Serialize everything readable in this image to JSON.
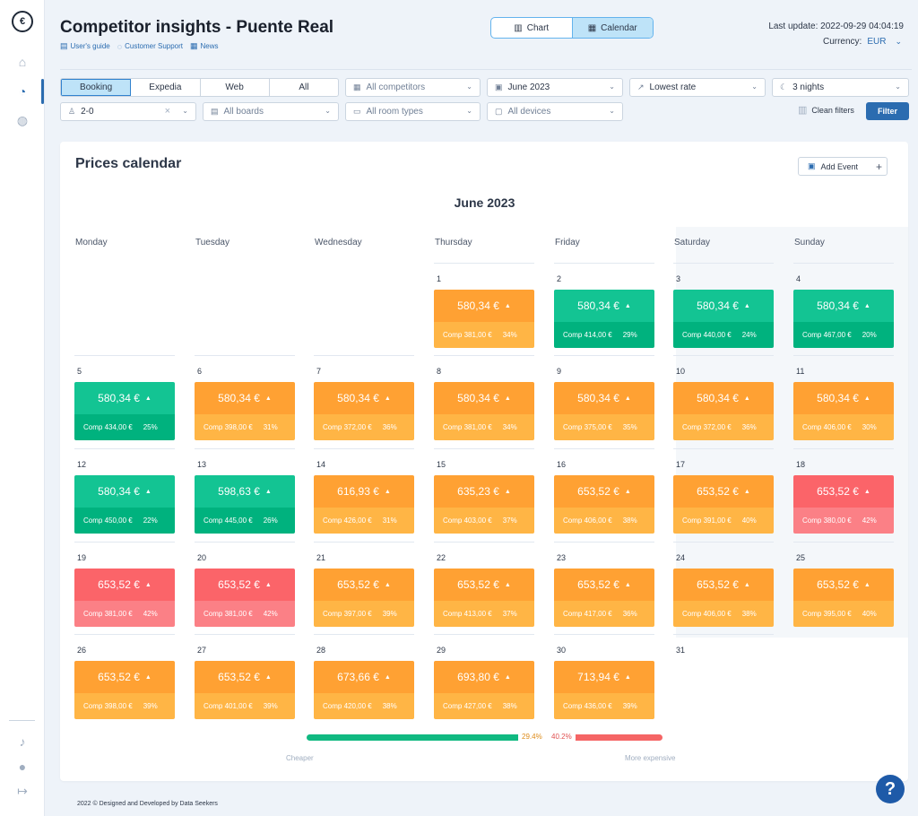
{
  "header": {
    "title": "Competitor insights - Puente Real",
    "links": [
      "User's guide",
      "Customer Support",
      "News"
    ],
    "view_toggle": [
      "Chart",
      "Calendar"
    ],
    "last_update": "Last update: 2022-09-29 04:04:19",
    "currency_label": "Currency:",
    "currency_value": "EUR"
  },
  "filters": {
    "sources": [
      "Booking",
      "Expedia",
      "Web",
      "All"
    ],
    "competitors": "All competitors",
    "month": "June 2023",
    "rate": "Lowest rate",
    "nights": "3 nights",
    "occupancy": "2-0",
    "boards": "All boards",
    "room_types": "All room types",
    "devices": "All devices",
    "clean_label": "Clean filters",
    "filter_label": "Filter"
  },
  "calendar": {
    "title": "Prices calendar",
    "add_event": "Add Event",
    "month_title": "June 2023",
    "weekdays": [
      "Monday",
      "Tuesday",
      "Wednesday",
      "Thursday",
      "Friday",
      "Saturday",
      "Sunday"
    ],
    "days": [
      {
        "d": "1",
        "price": "580,34 €",
        "comp": "Comp 381,00 €",
        "pct": "34%",
        "status": "o"
      },
      {
        "d": "2",
        "price": "580,34 €",
        "comp": "Comp 414,00 €",
        "pct": "29%",
        "status": "g"
      },
      {
        "d": "3",
        "price": "580,34 €",
        "comp": "Comp 440,00 €",
        "pct": "24%",
        "status": "g"
      },
      {
        "d": "4",
        "price": "580,34 €",
        "comp": "Comp 467,00 €",
        "pct": "20%",
        "status": "g"
      },
      {
        "d": "5",
        "price": "580,34 €",
        "comp": "Comp 434,00 €",
        "pct": "25%",
        "status": "g"
      },
      {
        "d": "6",
        "price": "580,34 €",
        "comp": "Comp 398,00 €",
        "pct": "31%",
        "status": "o"
      },
      {
        "d": "7",
        "price": "580,34 €",
        "comp": "Comp 372,00 €",
        "pct": "36%",
        "status": "o"
      },
      {
        "d": "8",
        "price": "580,34 €",
        "comp": "Comp 381,00 €",
        "pct": "34%",
        "status": "o"
      },
      {
        "d": "9",
        "price": "580,34 €",
        "comp": "Comp 375,00 €",
        "pct": "35%",
        "status": "o"
      },
      {
        "d": "10",
        "price": "580,34 €",
        "comp": "Comp 372,00 €",
        "pct": "36%",
        "status": "o"
      },
      {
        "d": "11",
        "price": "580,34 €",
        "comp": "Comp 406,00 €",
        "pct": "30%",
        "status": "o"
      },
      {
        "d": "12",
        "price": "580,34 €",
        "comp": "Comp 450,00 €",
        "pct": "22%",
        "status": "g"
      },
      {
        "d": "13",
        "price": "598,63 €",
        "comp": "Comp 445,00 €",
        "pct": "26%",
        "status": "g"
      },
      {
        "d": "14",
        "price": "616,93 €",
        "comp": "Comp 426,00 €",
        "pct": "31%",
        "status": "o"
      },
      {
        "d": "15",
        "price": "635,23 €",
        "comp": "Comp 403,00 €",
        "pct": "37%",
        "status": "o"
      },
      {
        "d": "16",
        "price": "653,52 €",
        "comp": "Comp 406,00 €",
        "pct": "38%",
        "status": "o"
      },
      {
        "d": "17",
        "price": "653,52 €",
        "comp": "Comp 391,00 €",
        "pct": "40%",
        "status": "o"
      },
      {
        "d": "18",
        "price": "653,52 €",
        "comp": "Comp 380,00 €",
        "pct": "42%",
        "status": "r"
      },
      {
        "d": "19",
        "price": "653,52 €",
        "comp": "Comp 381,00 €",
        "pct": "42%",
        "status": "r"
      },
      {
        "d": "20",
        "price": "653,52 €",
        "comp": "Comp 381,00 €",
        "pct": "42%",
        "status": "r"
      },
      {
        "d": "21",
        "price": "653,52 €",
        "comp": "Comp 397,00 €",
        "pct": "39%",
        "status": "o"
      },
      {
        "d": "22",
        "price": "653,52 €",
        "comp": "Comp 413,00 €",
        "pct": "37%",
        "status": "o"
      },
      {
        "d": "23",
        "price": "653,52 €",
        "comp": "Comp 417,00 €",
        "pct": "36%",
        "status": "o"
      },
      {
        "d": "24",
        "price": "653,52 €",
        "comp": "Comp 406,00 €",
        "pct": "38%",
        "status": "o"
      },
      {
        "d": "25",
        "price": "653,52 €",
        "comp": "Comp 395,00 €",
        "pct": "40%",
        "status": "o"
      },
      {
        "d": "26",
        "price": "653,52 €",
        "comp": "Comp 398,00 €",
        "pct": "39%",
        "status": "o"
      },
      {
        "d": "27",
        "price": "653,52 €",
        "comp": "Comp 401,00 €",
        "pct": "39%",
        "status": "o"
      },
      {
        "d": "28",
        "price": "673,66 €",
        "comp": "Comp 420,00 €",
        "pct": "38%",
        "status": "o"
      },
      {
        "d": "29",
        "price": "693,80 €",
        "comp": "Comp 427,00 €",
        "pct": "38%",
        "status": "o"
      },
      {
        "d": "30",
        "price": "713,94 €",
        "comp": "Comp 436,00 €",
        "pct": "39%",
        "status": "o"
      },
      {
        "d": "31",
        "price": "",
        "comp": "",
        "pct": "",
        "status": "none"
      }
    ]
  },
  "legend": {
    "cheaper_pct": "29.4%",
    "expensive_pct": "40.2%",
    "cheaper_label": "Cheaper",
    "expensive_label": "More expensive"
  },
  "footer": "2022 © Designed and Developed by Data Seekers",
  "icons": {
    "logo": "app-logo-icon",
    "sidebar": [
      "home-icon",
      "dashboard-gauge-icon",
      "globe-icon",
      "bell-icon",
      "user-icon",
      "logout-icon"
    ]
  },
  "colors": {
    "green": "#13c493",
    "orange": "#ffa133",
    "red": "#fb6469",
    "accent": "#2b6cb0"
  }
}
